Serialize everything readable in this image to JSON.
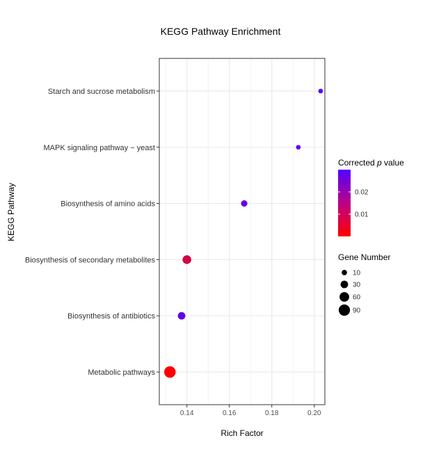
{
  "chart_data": {
    "type": "scatter",
    "title": "KEGG Pathway Enrichment",
    "xlabel": "Rich Factor",
    "ylabel": "KEGG Pathway",
    "xlim": [
      0.127,
      0.205
    ],
    "x_ticks": [
      "0.14",
      "0.16",
      "0.18",
      "0.20"
    ],
    "x_tick_values": [
      0.14,
      0.16,
      0.18,
      0.2
    ],
    "categories": [
      "Metabolic pathways",
      "Biosynthesis of antibiotics",
      "Biosynthesis of secondary metabolites",
      "Biosynthesis of amino acids",
      "MAPK signaling pathway − yeast",
      "Starch and sucrose metabolism"
    ],
    "points": [
      {
        "pathway": "Metabolic pathways",
        "rich_factor": 0.132,
        "gene_number": 95,
        "corrected_p": 0.0001
      },
      {
        "pathway": "Biosynthesis of antibiotics",
        "rich_factor": 0.1375,
        "gene_number": 30,
        "corrected_p": 0.027
      },
      {
        "pathway": "Biosynthesis of secondary metabolites",
        "rich_factor": 0.14,
        "gene_number": 45,
        "corrected_p": 0.008
      },
      {
        "pathway": "Biosynthesis of amino acids",
        "rich_factor": 0.167,
        "gene_number": 18,
        "corrected_p": 0.027
      },
      {
        "pathway": "MAPK signaling pathway − yeast",
        "rich_factor": 0.1925,
        "gene_number": 6,
        "corrected_p": 0.028
      },
      {
        "pathway": "Starch and sucrose metabolism",
        "rich_factor": 0.203,
        "gene_number": 6,
        "corrected_p": 0.029
      }
    ],
    "grid": true,
    "legend_placement": "right",
    "color_legend": {
      "title_prefix": "Corrected ",
      "title_italic": "p",
      "title_suffix": " value",
      "range": [
        0.0,
        0.03
      ],
      "ticks": [
        "0.01",
        "0.02"
      ],
      "tick_values": [
        0.01,
        0.02
      ],
      "low_color": "#ff0000",
      "high_color": "#5500ff"
    },
    "size_legend": {
      "title": "Gene Number",
      "labels": [
        "10",
        "30",
        "60",
        "90"
      ],
      "values": [
        10,
        30,
        60,
        90
      ]
    },
    "colors": {
      "panel_border": "#333333",
      "grid": "#ebebeb"
    }
  }
}
